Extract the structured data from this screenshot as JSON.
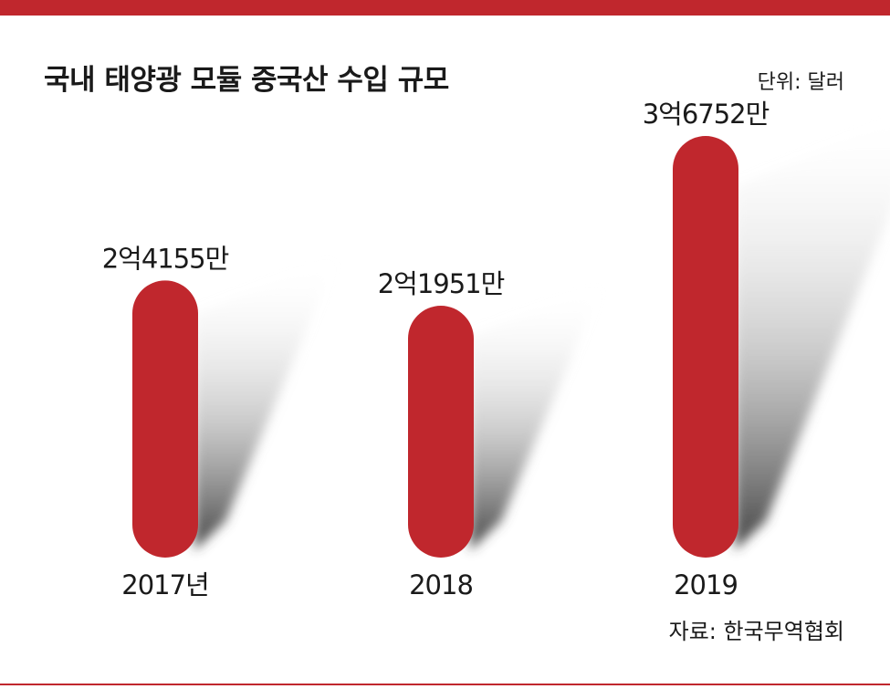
{
  "chart_data": {
    "type": "bar",
    "title": "국내 태양광 모듈 중국산 수입 규모",
    "unit_label": "단위: 달러",
    "source": "자료: 한국무역협회",
    "categories": [
      "2017년",
      "2018",
      "2019"
    ],
    "values": [
      241550000,
      219510000,
      367520000
    ],
    "value_labels": [
      "2억4155만",
      "2억1951만",
      "3억6752만"
    ],
    "ylim": [
      0,
      400000000
    ],
    "grid": false,
    "bar_color": "#c0272d",
    "accent_color": "#c0272d"
  }
}
